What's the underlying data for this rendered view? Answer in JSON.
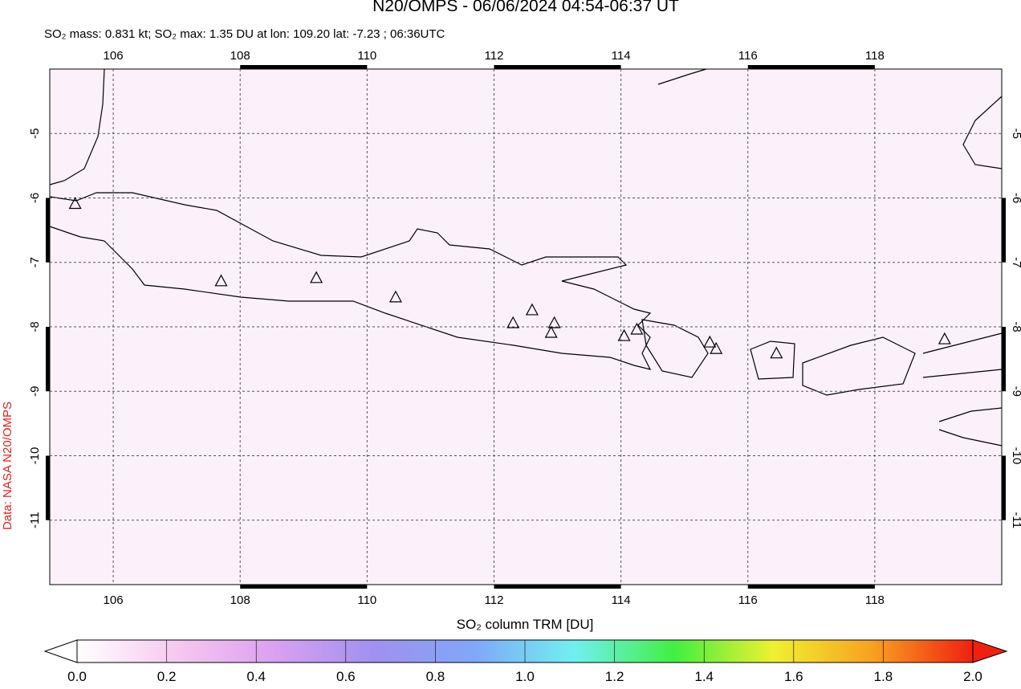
{
  "chart_data": {
    "type": "map",
    "title": "N20/OMPS - 06/06/2024 04:54-06:37 UT",
    "subtitle": "SO₂ mass: 0.831 kt; SO₂ max: 1.35 DU at lon: 109.20 lat: -7.23 ; 06:36UTC",
    "credit": "Data: NASA N20/OMPS",
    "xlim": [
      105,
      120
    ],
    "ylim": [
      -12,
      -4
    ],
    "xticks": [
      106,
      108,
      110,
      112,
      114,
      116,
      118
    ],
    "yticks": [
      -5,
      -6,
      -7,
      -8,
      -9,
      -10,
      -11
    ],
    "grid": true,
    "volcanoes": {
      "lon": [
        105.4,
        107.7,
        109.2,
        110.45,
        112.3,
        112.6,
        112.95,
        112.9,
        114.05,
        114.25,
        115.4,
        115.5,
        116.45,
        119.1
      ],
      "lat": [
        -6.1,
        -7.3,
        -7.25,
        -7.55,
        -7.95,
        -7.75,
        -7.95,
        -8.1,
        -8.15,
        -8.05,
        -8.25,
        -8.35,
        -8.42,
        -8.2
      ]
    },
    "colorbar": {
      "label": "SO₂ column TRM [DU]",
      "lim": [
        0,
        2
      ],
      "colors": [
        "#ffffff",
        "#f7c8f0",
        "#d9a0f0",
        "#a090f0",
        "#7fa8f8",
        "#70f0f0",
        "#40f040",
        "#f0f030",
        "#f8a020",
        "#f02010"
      ],
      "ticks": [
        {
          "value": 0,
          "label": "0.0"
        },
        {
          "value": 0.2,
          "label": "0.2"
        },
        {
          "value": 0.4,
          "label": "0.4"
        },
        {
          "value": 0.6,
          "label": "0.6"
        },
        {
          "value": 0.8,
          "label": "0.8"
        },
        {
          "value": 1,
          "label": "1.0"
        },
        {
          "value": 1.2,
          "label": "1.2"
        },
        {
          "value": 1.4,
          "label": "1.4"
        },
        {
          "value": 1.6,
          "label": "1.6"
        },
        {
          "value": 1.8,
          "label": "1.8"
        },
        {
          "value": 2,
          "label": "2.0"
        }
      ]
    }
  }
}
